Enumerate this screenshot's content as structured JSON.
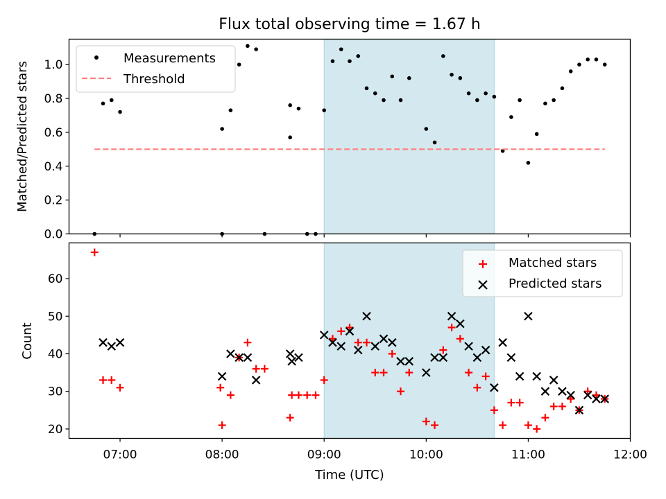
{
  "figure": {
    "title": "Flux total observing time = 1.67 h",
    "xlabel": "Time (UTC)"
  },
  "chart_data": [
    {
      "type": "scatter",
      "name": "ratio-panel",
      "ylabel": "Matched/Predicted stars",
      "xlim": [
        "06:30",
        "12:00"
      ],
      "ylim": [
        0.0,
        1.15
      ],
      "yticks": [
        0.0,
        0.2,
        0.4,
        0.6,
        0.8,
        1.0
      ],
      "ytick_labels": [
        "0.0",
        "0.2",
        "0.4",
        "0.6",
        "0.8",
        "1.0"
      ],
      "highlight_span": [
        "09:00",
        "10:40"
      ],
      "highlight_color": "#d3e9ef",
      "grid": false,
      "legend_position": "upper left",
      "series": [
        {
          "name": "Measurements",
          "kind": "dots",
          "color": "#000000",
          "points": [
            [
              "06:45",
              0.0
            ],
            [
              "06:50",
              0.77
            ],
            [
              "06:55",
              0.79
            ],
            [
              "07:00",
              0.72
            ],
            [
              "08:00",
              0.0
            ],
            [
              "08:00",
              0.62
            ],
            [
              "08:05",
              0.73
            ],
            [
              "08:10",
              1.0
            ],
            [
              "08:15",
              1.11
            ],
            [
              "08:20",
              1.09
            ],
            [
              "08:25",
              0.0
            ],
            [
              "08:40",
              0.57
            ],
            [
              "08:40",
              0.76
            ],
            [
              "08:45",
              0.74
            ],
            [
              "08:50",
              0.0
            ],
            [
              "08:55",
              0.0
            ],
            [
              "09:00",
              0.73
            ],
            [
              "09:05",
              1.02
            ],
            [
              "09:10",
              1.09
            ],
            [
              "09:15",
              1.02
            ],
            [
              "09:20",
              1.05
            ],
            [
              "09:25",
              0.86
            ],
            [
              "09:30",
              0.83
            ],
            [
              "09:35",
              0.79
            ],
            [
              "09:40",
              0.93
            ],
            [
              "09:45",
              0.79
            ],
            [
              "09:50",
              0.92
            ],
            [
              "10:00",
              0.62
            ],
            [
              "10:05",
              0.54
            ],
            [
              "10:10",
              1.05
            ],
            [
              "10:15",
              0.94
            ],
            [
              "10:20",
              0.92
            ],
            [
              "10:25",
              0.83
            ],
            [
              "10:30",
              0.79
            ],
            [
              "10:35",
              0.83
            ],
            [
              "10:40",
              0.81
            ],
            [
              "10:45",
              0.49
            ],
            [
              "10:50",
              0.69
            ],
            [
              "10:55",
              0.79
            ],
            [
              "11:00",
              0.42
            ],
            [
              "11:05",
              0.59
            ],
            [
              "11:10",
              0.77
            ],
            [
              "11:15",
              0.79
            ],
            [
              "11:20",
              0.86
            ],
            [
              "11:25",
              0.96
            ],
            [
              "11:30",
              1.0
            ],
            [
              "11:35",
              1.03
            ],
            [
              "11:40",
              1.03
            ],
            [
              "11:45",
              1.0
            ]
          ]
        },
        {
          "name": "Threshold",
          "kind": "dashed-line",
          "color": "#ff7f7f",
          "points": [
            [
              "06:45",
              0.5
            ],
            [
              "11:45",
              0.5
            ]
          ]
        }
      ]
    },
    {
      "type": "scatter",
      "name": "count-panel",
      "ylabel": "Count",
      "xlim": [
        "06:30",
        "12:00"
      ],
      "ylim": [
        17.5,
        69.5
      ],
      "yticks": [
        20,
        30,
        40,
        50,
        60
      ],
      "ytick_labels": [
        "20",
        "30",
        "40",
        "50",
        "60"
      ],
      "xticks": [
        "07:00",
        "08:00",
        "09:00",
        "10:00",
        "11:00",
        "12:00"
      ],
      "xtick_labels": [
        "07:00",
        "08:00",
        "09:00",
        "10:00",
        "11:00",
        "12:00"
      ],
      "highlight_span": [
        "09:00",
        "10:40"
      ],
      "highlight_color": "#d3e9ef",
      "grid": false,
      "legend_position": "upper right",
      "series": [
        {
          "name": "Matched stars",
          "marker": "plus",
          "color": "#ff0000",
          "points": [
            [
              "06:45",
              67
            ],
            [
              "06:50",
              33
            ],
            [
              "06:55",
              33
            ],
            [
              "07:00",
              31
            ],
            [
              "07:59",
              31
            ],
            [
              "08:00",
              21
            ],
            [
              "08:05",
              29
            ],
            [
              "08:10",
              39
            ],
            [
              "08:15",
              43
            ],
            [
              "08:20",
              36
            ],
            [
              "08:25",
              36
            ],
            [
              "08:40",
              23
            ],
            [
              "08:41",
              29
            ],
            [
              "08:45",
              29
            ],
            [
              "08:50",
              29
            ],
            [
              "08:55",
              29
            ],
            [
              "09:00",
              33
            ],
            [
              "09:05",
              44
            ],
            [
              "09:10",
              46
            ],
            [
              "09:15",
              47
            ],
            [
              "09:20",
              43
            ],
            [
              "09:25",
              43
            ],
            [
              "09:30",
              35
            ],
            [
              "09:35",
              35
            ],
            [
              "09:40",
              40
            ],
            [
              "09:45",
              30
            ],
            [
              "09:50",
              35
            ],
            [
              "10:00",
              22
            ],
            [
              "10:05",
              21
            ],
            [
              "10:10",
              41
            ],
            [
              "10:15",
              47
            ],
            [
              "10:20",
              44
            ],
            [
              "10:25",
              35
            ],
            [
              "10:30",
              31
            ],
            [
              "10:35",
              34
            ],
            [
              "10:40",
              25
            ],
            [
              "10:45",
              21
            ],
            [
              "10:50",
              27
            ],
            [
              "10:55",
              27
            ],
            [
              "11:00",
              21
            ],
            [
              "11:05",
              20
            ],
            [
              "11:10",
              23
            ],
            [
              "11:15",
              26
            ],
            [
              "11:20",
              26
            ],
            [
              "11:25",
              28
            ],
            [
              "11:30",
              25
            ],
            [
              "11:35",
              30
            ],
            [
              "11:40",
              29
            ],
            [
              "11:45",
              28
            ]
          ]
        },
        {
          "name": "Predicted stars",
          "marker": "x",
          "color": "#000000",
          "points": [
            [
              "06:50",
              43
            ],
            [
              "06:55",
              42
            ],
            [
              "07:00",
              43
            ],
            [
              "08:00",
              34
            ],
            [
              "08:05",
              40
            ],
            [
              "08:10",
              39
            ],
            [
              "08:15",
              39
            ],
            [
              "08:20",
              33
            ],
            [
              "08:40",
              40
            ],
            [
              "08:41",
              38
            ],
            [
              "08:45",
              39
            ],
            [
              "09:00",
              45
            ],
            [
              "09:05",
              43
            ],
            [
              "09:10",
              42
            ],
            [
              "09:15",
              46
            ],
            [
              "09:20",
              41
            ],
            [
              "09:25",
              50
            ],
            [
              "09:30",
              42
            ],
            [
              "09:35",
              44
            ],
            [
              "09:40",
              43
            ],
            [
              "09:45",
              38
            ],
            [
              "09:50",
              38
            ],
            [
              "10:00",
              35
            ],
            [
              "10:05",
              39
            ],
            [
              "10:10",
              39
            ],
            [
              "10:15",
              50
            ],
            [
              "10:20",
              48
            ],
            [
              "10:25",
              42
            ],
            [
              "10:30",
              39
            ],
            [
              "10:35",
              41
            ],
            [
              "10:40",
              31
            ],
            [
              "10:45",
              43
            ],
            [
              "10:50",
              39
            ],
            [
              "10:55",
              34
            ],
            [
              "11:00",
              50
            ],
            [
              "11:05",
              34
            ],
            [
              "11:10",
              30
            ],
            [
              "11:15",
              33
            ],
            [
              "11:20",
              30
            ],
            [
              "11:25",
              29
            ],
            [
              "11:30",
              25
            ],
            [
              "11:35",
              29
            ],
            [
              "11:40",
              28
            ],
            [
              "11:45",
              28
            ]
          ]
        }
      ]
    }
  ]
}
